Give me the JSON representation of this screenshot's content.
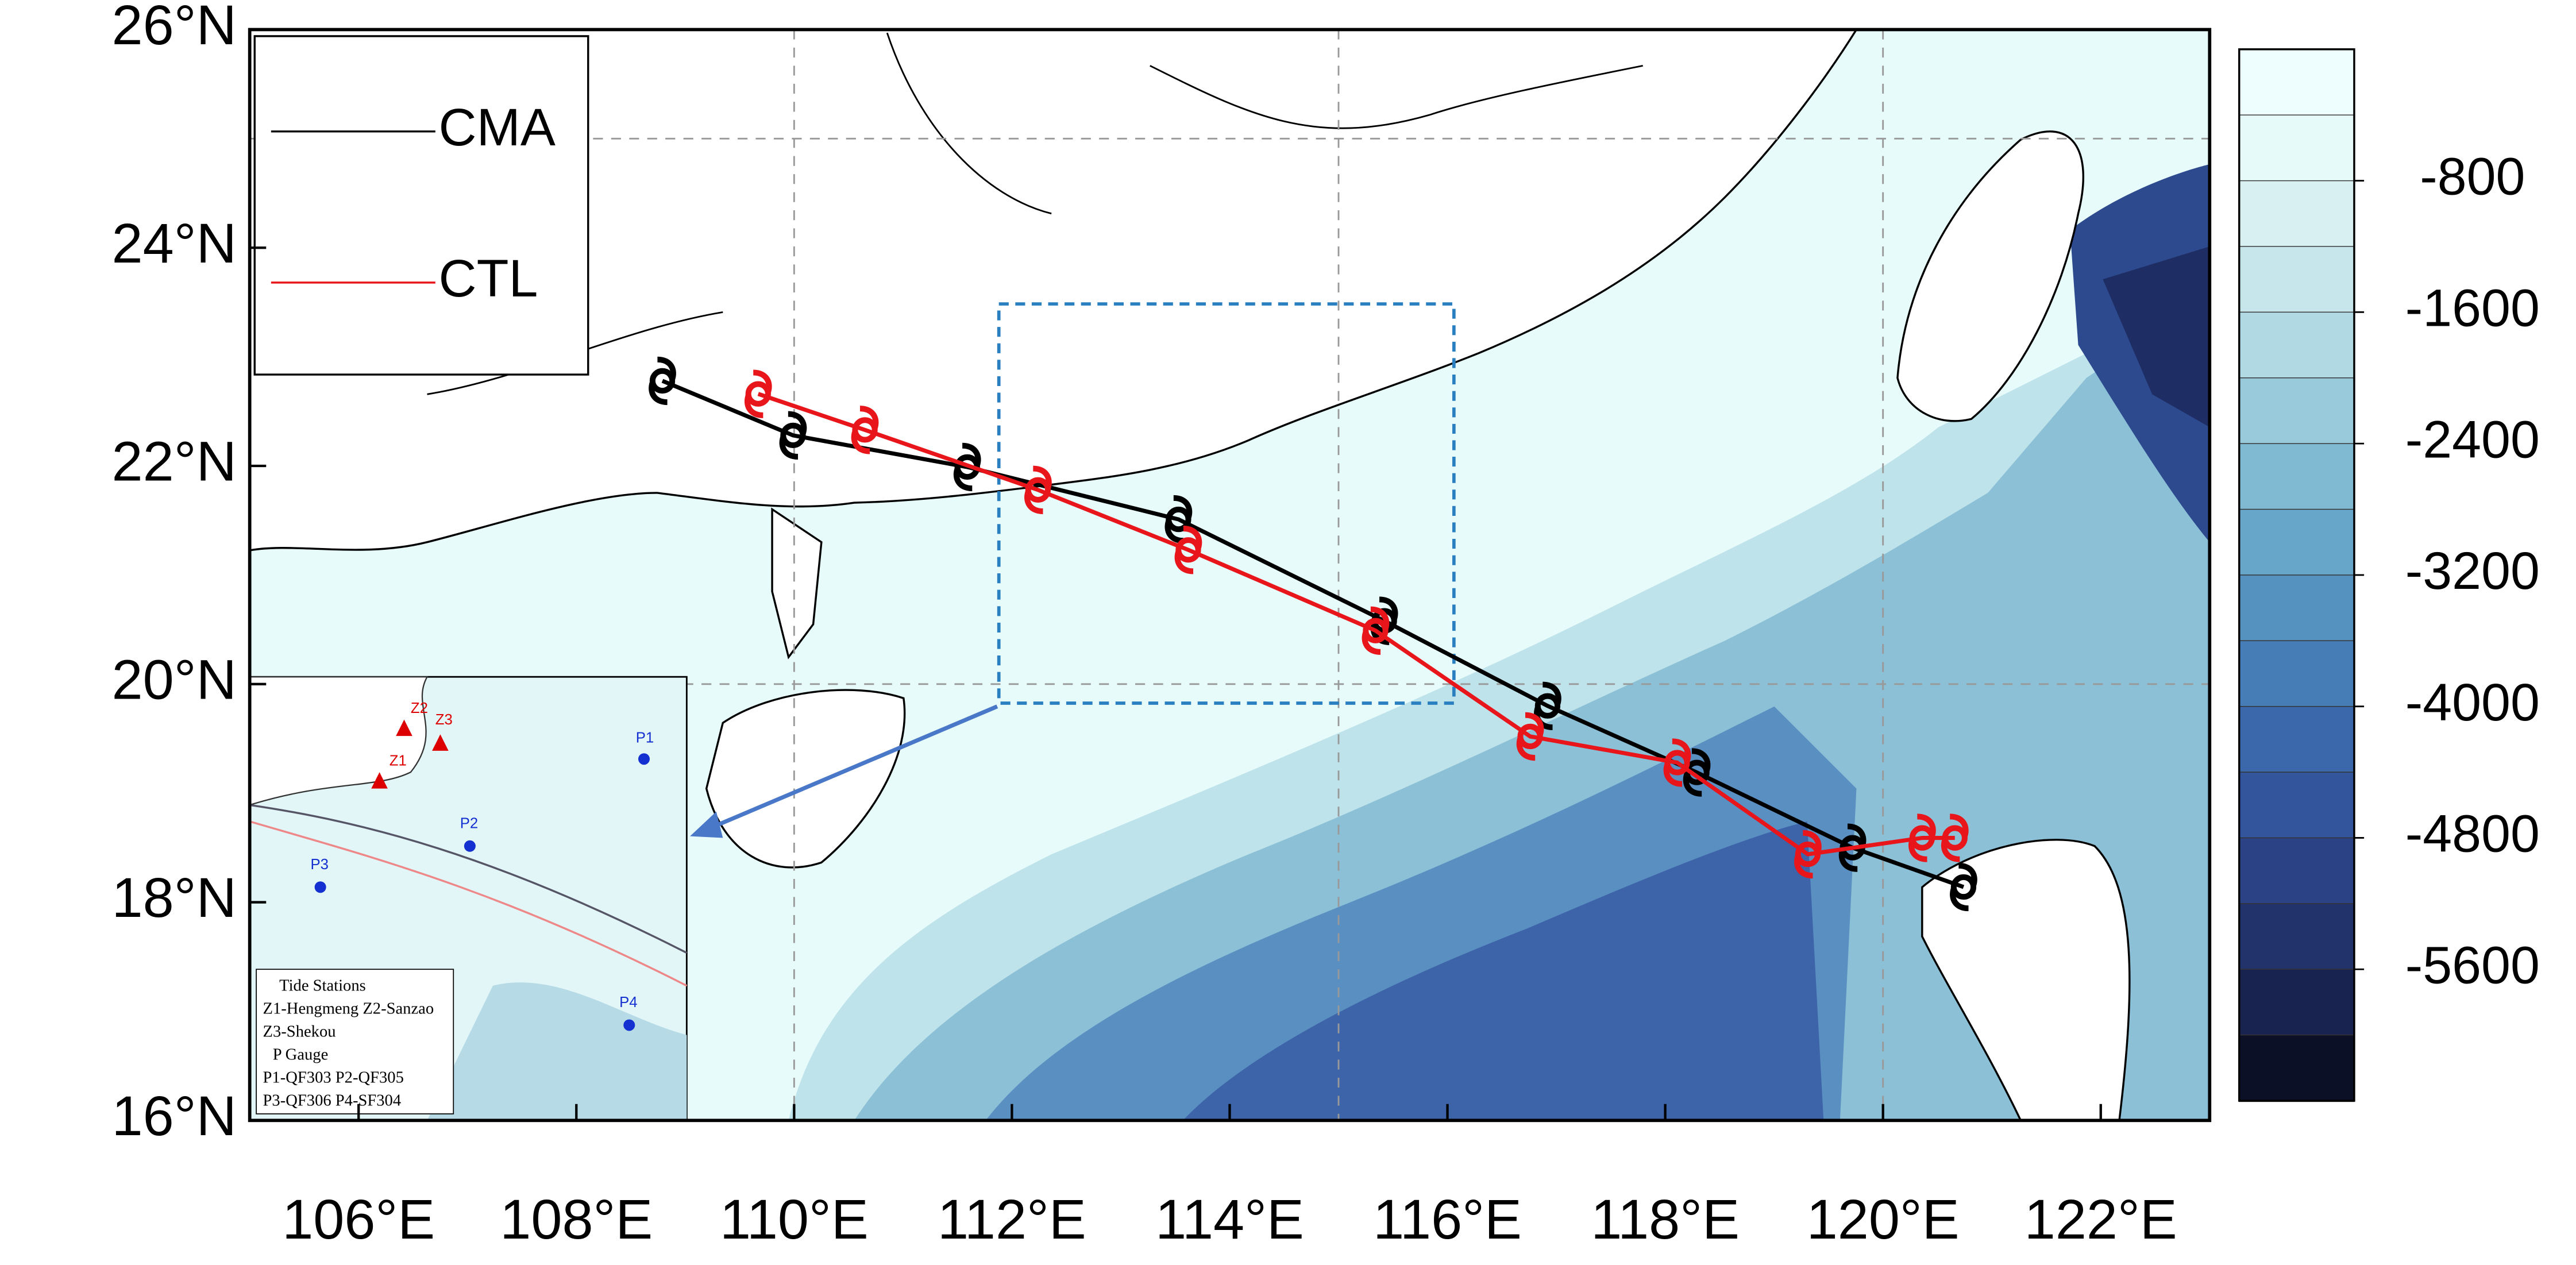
{
  "chart_data": {
    "type": "track-map",
    "xlim": [
      105,
      123
    ],
    "ylim": [
      16,
      26
    ],
    "xticks": [
      {
        "value": 106,
        "label": "106°E"
      },
      {
        "value": 108,
        "label": "108°E"
      },
      {
        "value": 110,
        "label": "110°E"
      },
      {
        "value": 112,
        "label": "112°E"
      },
      {
        "value": 114,
        "label": "114°E"
      },
      {
        "value": 116,
        "label": "116°E"
      },
      {
        "value": 118,
        "label": "118°E"
      },
      {
        "value": 120,
        "label": "120°E"
      },
      {
        "value": 122,
        "label": "122°E"
      }
    ],
    "yticks": [
      {
        "value": 16,
        "label": "16°N"
      },
      {
        "value": 18,
        "label": "18°N"
      },
      {
        "value": 20,
        "label": "20°N"
      },
      {
        "value": 22,
        "label": "22°N"
      },
      {
        "value": 24,
        "label": "24°N"
      },
      {
        "value": 26,
        "label": "26°N"
      }
    ],
    "grid_x": [
      110,
      115,
      120
    ],
    "grid_y": [
      20,
      25
    ],
    "series": [
      {
        "name": "CMA",
        "color": "#000000",
        "x": [
          108.79,
          109.99,
          111.59,
          113.53,
          115.42,
          116.92,
          118.29,
          119.72,
          120.74
        ],
        "values": [
          22.78,
          22.28,
          21.99,
          21.51,
          20.58,
          19.8,
          19.19,
          18.5,
          18.14
        ]
      },
      {
        "name": "CTL",
        "color": "#e8161b",
        "x": [
          109.67,
          110.65,
          112.24,
          113.62,
          115.34,
          116.76,
          118.11,
          119.31,
          120.36,
          120.66
        ],
        "values": [
          22.66,
          22.33,
          21.78,
          21.23,
          20.49,
          19.52,
          19.28,
          18.44,
          18.59,
          18.59
        ]
      }
    ],
    "colorbar": {
      "lim": [
        0,
        -6400
      ],
      "ticks": [
        -800,
        -1600,
        -2400,
        -3200,
        -4000,
        -4800,
        -5600
      ],
      "colors": [
        "#eefefe",
        "#e6fafa",
        "#d8f0f2",
        "#c6e6ec",
        "#b0d9e4",
        "#98cadb",
        "#7fb9d2",
        "#68a6c9",
        "#5592c0",
        "#467db6",
        "#3b68aa",
        "#33559b",
        "#2b4385",
        "#22336b",
        "#19234f",
        "#0c1026"
      ]
    },
    "inset": {
      "station_labels": [
        "Z1",
        "Z2",
        "Z3",
        "P1",
        "P2",
        "P3",
        "P4"
      ],
      "notes": [
        "Tide Stations",
        "Z1-Hengmeng Z2-Sanzao",
        "Z3-Shekou",
        "P Gauge",
        "P1-QF303 P2-QF305",
        "P3-QF306 P4-SF304"
      ]
    }
  }
}
